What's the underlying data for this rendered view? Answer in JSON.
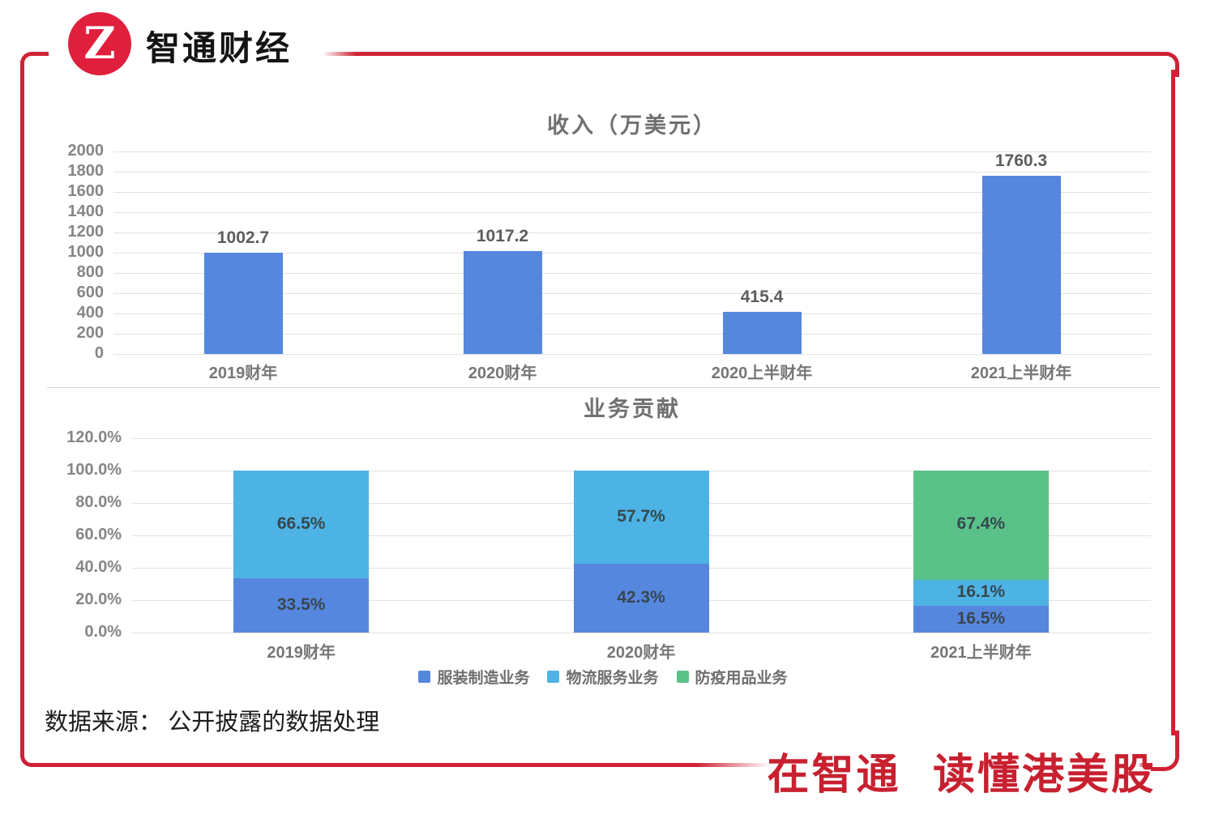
{
  "brand": {
    "logo_glyph": "Z",
    "logo_text": "智通财经",
    "slogan": "在智通 读懂港美股",
    "brand_red": "#cf2236"
  },
  "source_note": "数据来源： 公开披露的数据处理",
  "chart_data": [
    {
      "type": "bar",
      "title": "收入（万美元）",
      "categories": [
        "2019财年",
        "2020财年",
        "2020上半财年",
        "2021上半财年"
      ],
      "values": [
        1002.7,
        1017.2,
        415.4,
        1760.3
      ],
      "bar_color": "#5687df",
      "ylim": [
        0,
        2000
      ],
      "ytick_step": 200,
      "grid": true,
      "legend": "none"
    },
    {
      "type": "bar",
      "stacked": true,
      "title": "业务贡献",
      "categories": [
        "2019财年",
        "2020财年",
        "2021上半财年"
      ],
      "series": [
        {
          "name": "服装制造业务",
          "color": "#5687df",
          "values": [
            33.5,
            42.3,
            16.5
          ]
        },
        {
          "name": "物流服务业务",
          "color": "#4db3e4",
          "values": [
            66.5,
            57.7,
            16.1
          ]
        },
        {
          "name": "防疫用品业务",
          "color": "#5ac289",
          "values": [
            0,
            0,
            67.4
          ]
        }
      ],
      "value_suffix": "%",
      "ylim": [
        0,
        120
      ],
      "ytick_step": 20,
      "ytick_decimals": 1,
      "grid": true,
      "legend": "bottom"
    }
  ]
}
